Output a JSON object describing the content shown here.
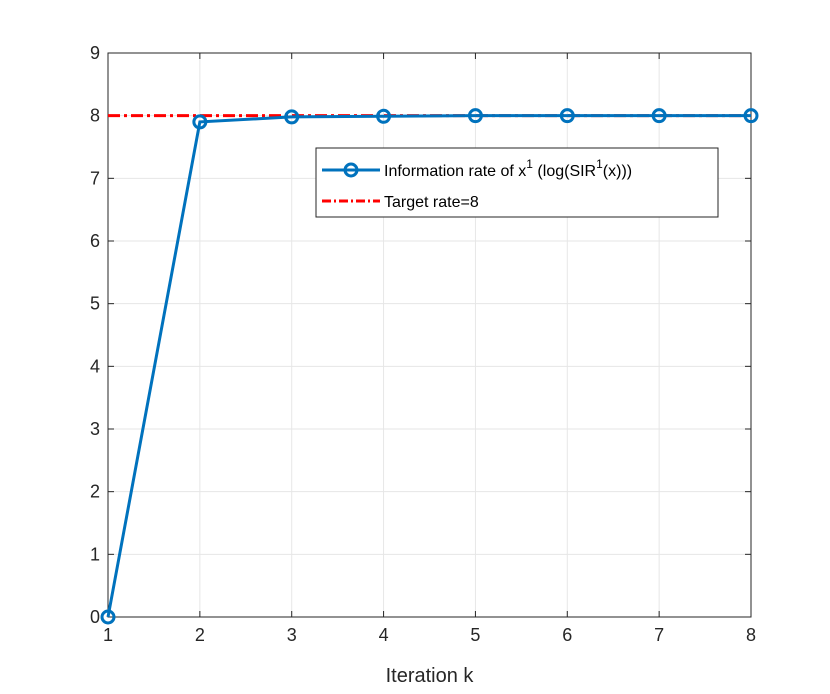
{
  "chart_data": {
    "type": "line",
    "title": "",
    "xlabel": "Iteration k",
    "ylabel": "",
    "xlim": [
      1,
      8
    ],
    "ylim": [
      0,
      9
    ],
    "xticks": [
      1,
      2,
      3,
      4,
      5,
      6,
      7,
      8
    ],
    "yticks": [
      0,
      1,
      2,
      3,
      4,
      5,
      6,
      7,
      8,
      9
    ],
    "grid": true,
    "legend_position": "upper-right",
    "series": [
      {
        "name_parts": [
          "Information rate of x",
          "1",
          " (log(SIR",
          "1",
          "(x)))"
        ],
        "style": "solid",
        "marker": "circle",
        "color": "#0072BD",
        "x": [
          1,
          2,
          3,
          4,
          5,
          6,
          7,
          8
        ],
        "y": [
          0,
          7.9,
          7.98,
          7.99,
          8.0,
          8.0,
          8.0,
          8.0
        ]
      },
      {
        "name": "Target rate=8",
        "style": "dash-dot",
        "marker": "none",
        "color": "#FF0000",
        "x": [
          1,
          8
        ],
        "y": [
          8,
          8
        ]
      }
    ]
  }
}
